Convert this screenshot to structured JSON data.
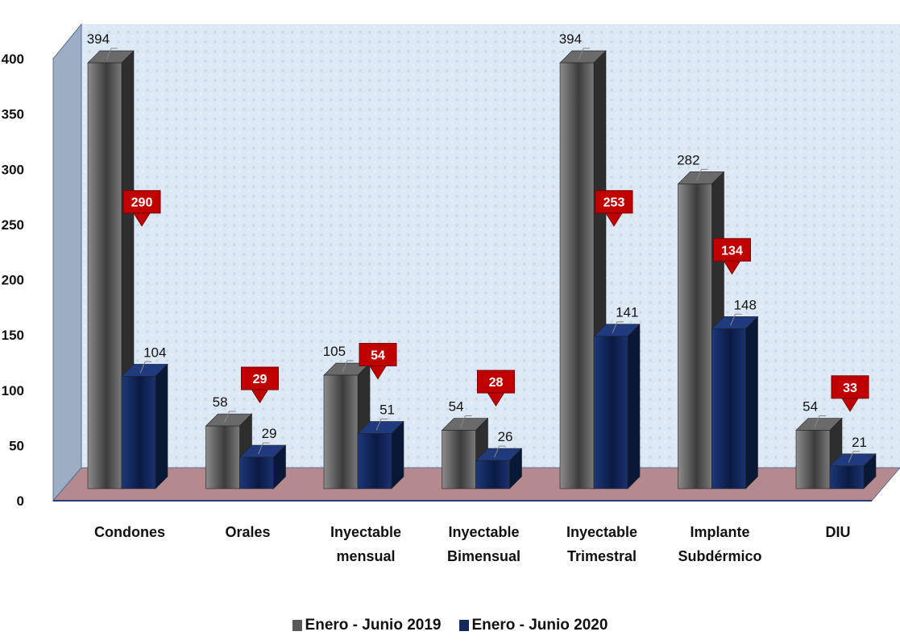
{
  "chart_data": {
    "type": "bar",
    "categories": [
      [
        "Condones"
      ],
      [
        "Orales"
      ],
      [
        "Inyectable",
        "mensual"
      ],
      [
        "Inyectable",
        "Bimensual"
      ],
      [
        "Inyectable",
        "Trimestral"
      ],
      [
        "Implante",
        "Subdérmico"
      ],
      [
        "DIU"
      ]
    ],
    "series": [
      {
        "name": "Enero - Junio  2019",
        "values": [
          394,
          58,
          105,
          54,
          394,
          282,
          54
        ],
        "color": "#595959"
      },
      {
        "name": "Enero - Junio  2020",
        "values": [
          104,
          29,
          51,
          26,
          141,
          148,
          21
        ],
        "color": "#14295e"
      }
    ],
    "differences": [
      290,
      29,
      54,
      28,
      253,
      134,
      33
    ],
    "difference_color": "#c00000",
    "ylim": [
      0,
      400
    ],
    "yticks": [
      0,
      50,
      100,
      150,
      200,
      250,
      300,
      350,
      400
    ],
    "grid": false,
    "legend_position": "bottom",
    "title": "",
    "xlabel": "",
    "ylabel": ""
  }
}
